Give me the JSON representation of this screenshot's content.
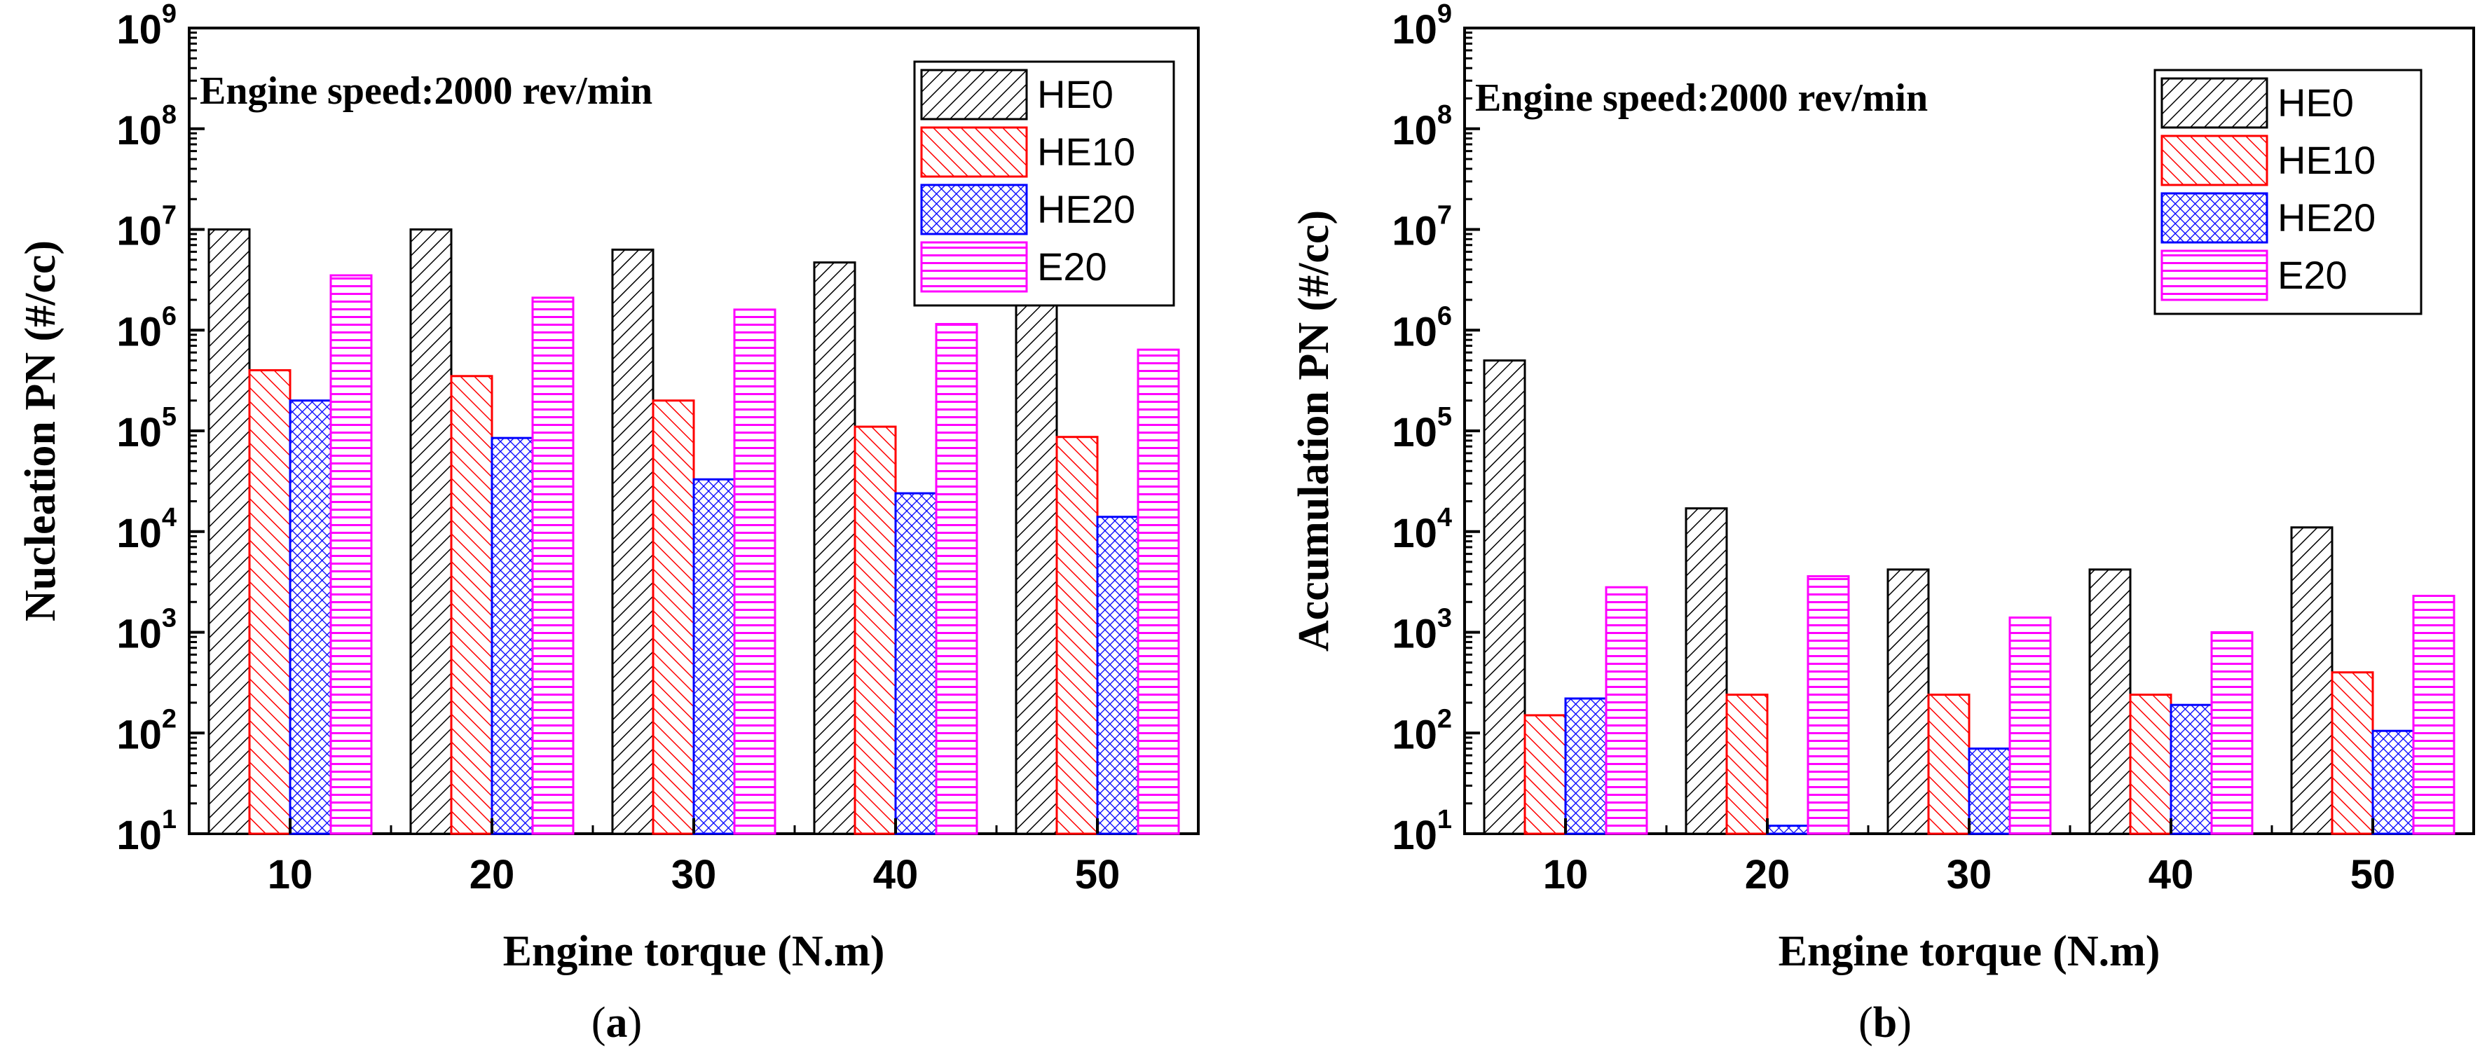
{
  "colors": {
    "HE0": "#000000",
    "HE10": "#ff0000",
    "HE20": "#0000ff",
    "E20": "#ff00ff",
    "axis": "#000000"
  },
  "chart_data": [
    {
      "type": "bar",
      "yscale": "log",
      "panel_label": "(a)",
      "annotation": "Engine speed:2000 rev/min",
      "xlabel": "Engine torque (N.m)",
      "ylabel": "Nucleation PN  (#/cc)",
      "categories": [
        "10",
        "20",
        "30",
        "40",
        "50"
      ],
      "ylim": [
        10,
        1000000000
      ],
      "ytick_exponents": [
        "1",
        "2",
        "3",
        "4",
        "5",
        "6",
        "7",
        "8",
        "9"
      ],
      "legend_position": "top-right",
      "series": [
        {
          "name": "HE0",
          "pattern": "diag-black",
          "values": [
            10000000,
            10000000,
            6300000,
            4700000,
            2800000
          ]
        },
        {
          "name": "HE10",
          "pattern": "diag-red",
          "values": [
            400000,
            350000,
            200000,
            110000,
            87000
          ]
        },
        {
          "name": "HE20",
          "pattern": "cross-blue",
          "values": [
            200000,
            85000,
            33000,
            24000,
            14000
          ]
        },
        {
          "name": "E20",
          "pattern": "horiz-magenta",
          "values": [
            3500000,
            2100000,
            1600000,
            1150000,
            640000
          ]
        }
      ]
    },
    {
      "type": "bar",
      "yscale": "log",
      "panel_label": "(b)",
      "annotation": "Engine speed:2000 rev/min",
      "xlabel": "Engine torque (N.m)",
      "ylabel": "Accumulation PN  (#/cc)",
      "categories": [
        "10",
        "20",
        "30",
        "40",
        "50"
      ],
      "ylim": [
        10,
        1000000000
      ],
      "ytick_exponents": [
        "1",
        "2",
        "3",
        "4",
        "5",
        "6",
        "7",
        "8",
        "9"
      ],
      "legend_position": "top-right",
      "series": [
        {
          "name": "HE0",
          "pattern": "diag-black",
          "values": [
            500000,
            17000,
            4200,
            4200,
            11000
          ]
        },
        {
          "name": "HE10",
          "pattern": "diag-red",
          "values": [
            150,
            240,
            240,
            240,
            400
          ]
        },
        {
          "name": "HE20",
          "pattern": "cross-blue",
          "values": [
            220,
            12,
            70,
            190,
            105
          ]
        },
        {
          "name": "E20",
          "pattern": "horiz-magenta",
          "values": [
            2800,
            3600,
            1400,
            1000,
            2300
          ]
        }
      ]
    }
  ]
}
